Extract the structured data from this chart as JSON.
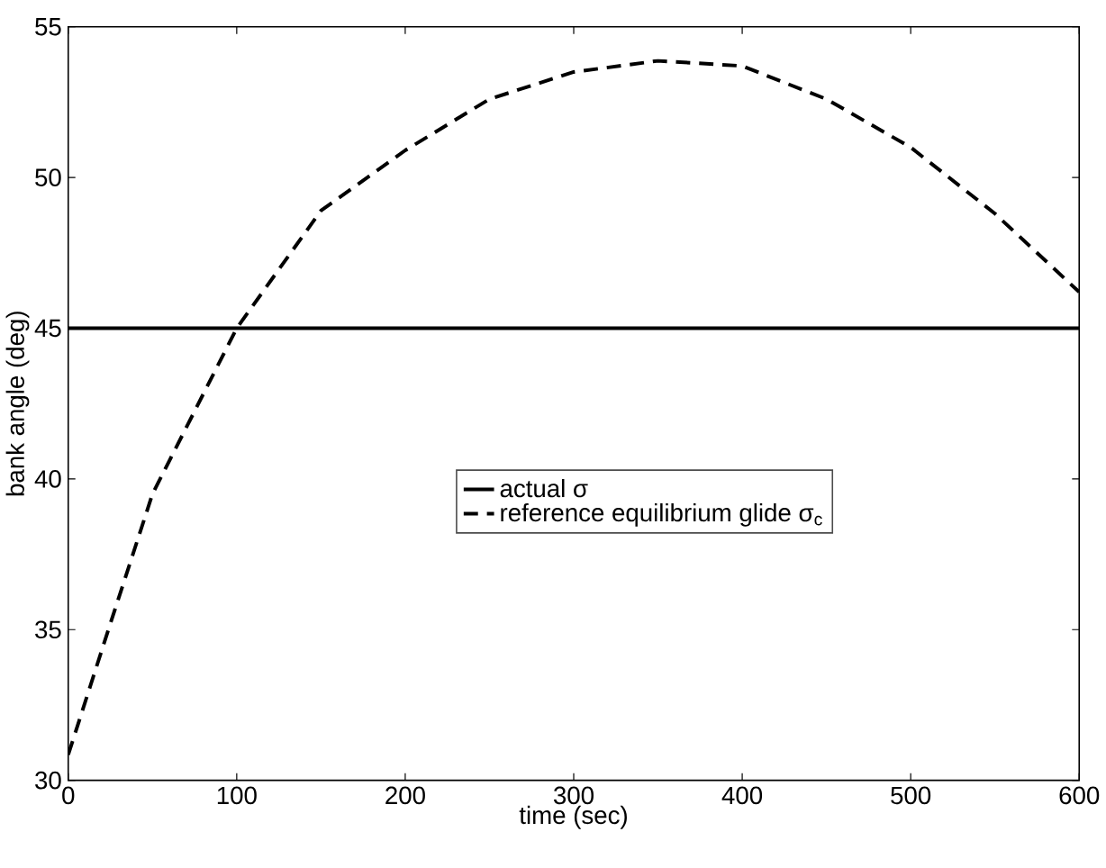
{
  "chart_data": {
    "type": "line",
    "xlabel": "time (sec)",
    "ylabel": "bank angle (deg)",
    "xlim": [
      0,
      600
    ],
    "ylim": [
      30,
      55
    ],
    "xticks": [
      0,
      100,
      200,
      300,
      400,
      500,
      600
    ],
    "yticks": [
      30,
      35,
      40,
      45,
      50,
      55
    ],
    "grid": false,
    "legend": "center",
    "marker": "none",
    "series": [
      {
        "name": "actual σ",
        "color": "#000000",
        "line_style": "solid",
        "x": [
          0,
          600
        ],
        "values": [
          45,
          45
        ]
      },
      {
        "name": "reference equilibrium glide σ$_{c}$",
        "color": "#000000",
        "line_style": "dashed",
        "x": [
          0,
          25,
          50,
          100,
          150,
          200,
          250,
          300,
          350,
          400,
          450,
          500,
          550,
          600
        ],
        "values": [
          30.85,
          35.2,
          39.5,
          45.0,
          48.9,
          50.9,
          52.6,
          53.5,
          53.87,
          53.7,
          52.6,
          51.0,
          48.8,
          46.2
        ]
      }
    ]
  }
}
